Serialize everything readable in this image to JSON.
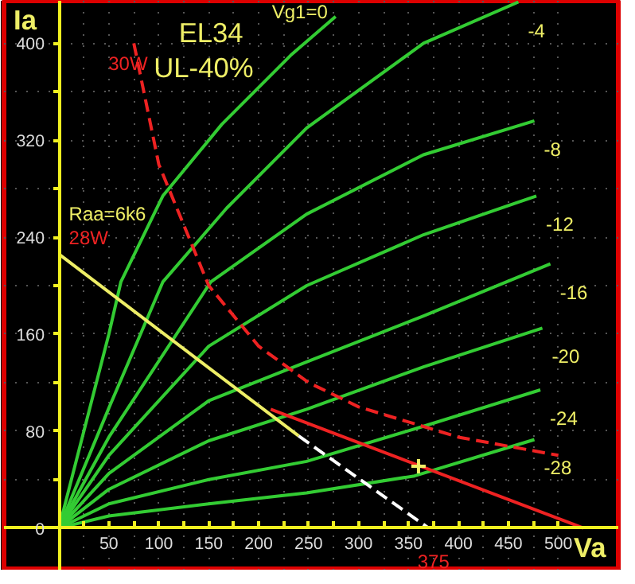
{
  "chart_data": {
    "type": "line",
    "title": "EL34",
    "subtitle": "UL-40%",
    "xlabel": "Va",
    "ylabel": "Ia",
    "xlim": [
      -55,
      560
    ],
    "ylim": [
      -35,
      435
    ],
    "xticks": [
      {
        "value": 0,
        "label": null
      },
      {
        "value": 25,
        "label": null
      },
      50,
      {
        "value": 75,
        "label": null
      },
      100,
      {
        "value": 125,
        "label": null
      },
      150,
      {
        "value": 175,
        "label": null
      },
      200,
      {
        "value": 225,
        "label": null
      },
      250,
      {
        "value": 275,
        "label": null
      },
      300,
      {
        "value": 325,
        "label": null
      },
      350,
      {
        "value": 375,
        "label": null
      },
      400,
      {
        "value": 425,
        "label": null
      },
      450,
      {
        "value": 475,
        "label": null
      },
      500
    ],
    "yticks": [
      0,
      {
        "value": 40,
        "label": null
      },
      80,
      {
        "value": 120,
        "label": null
      },
      160,
      {
        "value": 200,
        "label": null
      },
      240,
      {
        "value": 280,
        "label": null
      },
      320,
      {
        "value": 360,
        "label": null
      },
      400
    ],
    "grid": true,
    "series": [
      {
        "name": "Vg1=0",
        "color": "#33cc33",
        "x": [
          0,
          50,
          62,
          104,
          163,
          232,
          277
        ],
        "values": [
          0,
          160,
          203,
          274,
          333,
          390,
          422
        ]
      },
      {
        "name": "-4",
        "color": "#33cc33",
        "x": [
          0,
          50,
          104,
          168,
          248,
          365,
          460
        ],
        "values": [
          0,
          99,
          203,
          264,
          330,
          400,
          434
        ]
      },
      {
        "name": "-8",
        "color": "#33cc33",
        "x": [
          0,
          50,
          152,
          248,
          365,
          476
        ],
        "values": [
          0,
          75,
          203,
          259,
          308,
          336
        ]
      },
      {
        "name": "-12",
        "color": "#33cc33",
        "x": [
          0,
          50,
          150,
          248,
          365,
          478
        ],
        "values": [
          0,
          60,
          150,
          200,
          242,
          274
        ]
      },
      {
        "name": "-16",
        "color": "#33cc33",
        "x": [
          0,
          50,
          150,
          248,
          365,
          492
        ],
        "values": [
          0,
          45,
          105,
          137,
          175,
          218
        ]
      },
      {
        "name": "-20",
        "color": "#33cc33",
        "x": [
          0,
          50,
          150,
          248,
          365,
          484
        ],
        "values": [
          0,
          32,
          72,
          98,
          133,
          165
        ]
      },
      {
        "name": "-24",
        "color": "#33cc33",
        "x": [
          0,
          50,
          150,
          248,
          365,
          482
        ],
        "values": [
          0,
          20,
          40,
          55,
          84,
          114
        ]
      },
      {
        "name": "-28",
        "color": "#33cc33",
        "x": [
          0,
          50,
          150,
          248,
          356,
          476
        ],
        "values": [
          0,
          10,
          20,
          29,
          43,
          73
        ]
      },
      {
        "color": "#ee2222",
        "line_style": "dashed",
        "x": [
          75,
          100,
          150,
          200,
          250,
          300,
          400,
          500
        ],
        "values": [
          400,
          300,
          200,
          150,
          120,
          100,
          75,
          60
        ]
      },
      {
        "color": "#ee2222",
        "x": [
          212,
          525
        ],
        "values": [
          98,
          0
        ]
      },
      {
        "color": "#eeee66",
        "x": [
          0,
          240
        ],
        "values": [
          226,
          76
        ]
      },
      {
        "color": "#ffffff",
        "line_style": "dashed",
        "x": [
          240,
          370
        ],
        "values": [
          76,
          0
        ]
      },
      {
        "type": "scatter",
        "marker": "cross",
        "color": "#eeee66",
        "x": [
          360
        ],
        "values": [
          51
        ]
      }
    ],
    "annotations": [
      {
        "text": "30W",
        "x": 75,
        "y": 400
      },
      "Raa=6k6",
      "28W",
      {
        "text": "375",
        "x": 375,
        "y": 0
      }
    ]
  }
}
